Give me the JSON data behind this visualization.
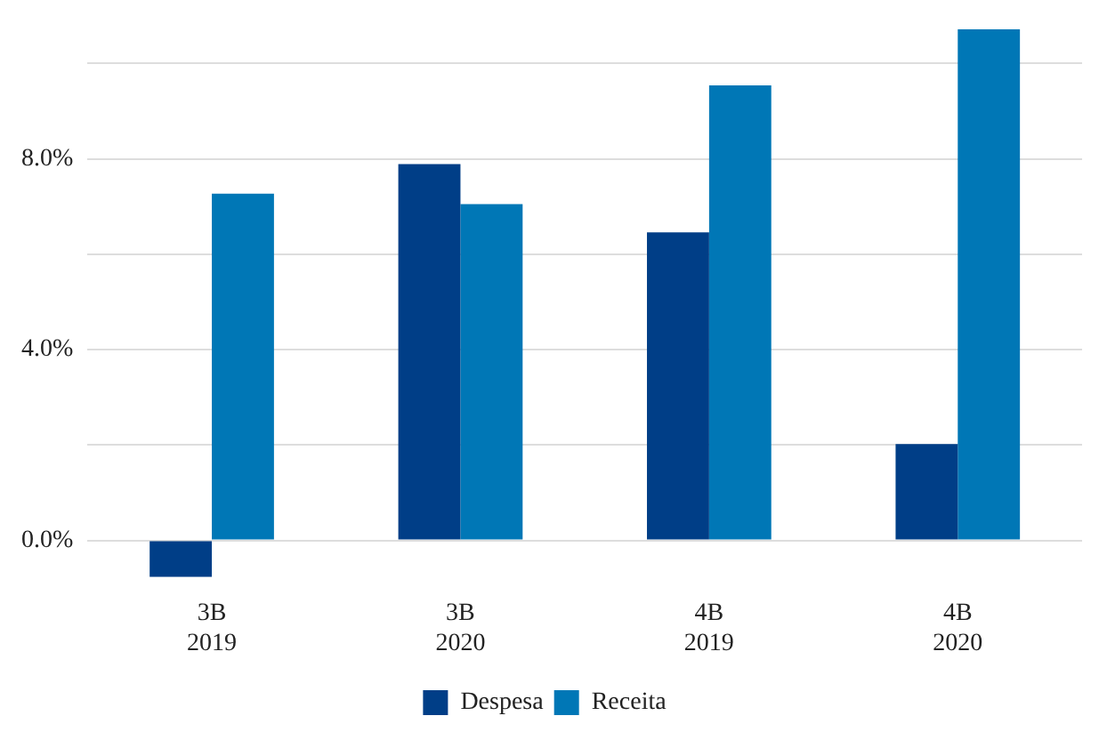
{
  "chart_data": {
    "type": "bar",
    "categories": [
      "3B\n2019",
      "3B\n2020",
      "4B\n2019",
      "4B\n2020"
    ],
    "series": [
      {
        "name": "Despesa",
        "color": "#003e87",
        "values": [
          -0.77,
          7.89,
          6.46,
          2.02
        ]
      },
      {
        "name": "Receita",
        "color": "#0077b6",
        "values": [
          7.27,
          7.05,
          9.54,
          10.72
        ]
      }
    ],
    "ylim": [
      -0.77,
      10.72
    ],
    "yticks": [
      {
        "value": 0,
        "label": "0.0%"
      },
      {
        "value": 2,
        "label": null
      },
      {
        "value": 4,
        "label": "4.0%"
      },
      {
        "value": 6,
        "label": null
      },
      {
        "value": 8,
        "label": "8.0%"
      },
      {
        "value": 10,
        "label": null
      }
    ],
    "grid": "y",
    "legend": "bottom"
  }
}
